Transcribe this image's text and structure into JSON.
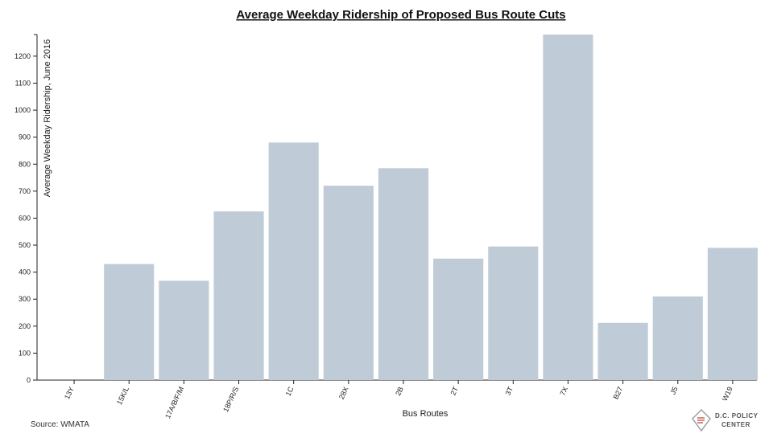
{
  "chart_data": {
    "type": "bar",
    "title": "Average Weekday Ridership of Proposed Bus Route Cuts",
    "xlabel": "Bus Routes",
    "ylabel": "Average Weekday Ridership, June 2016",
    "categories": [
      "13Y",
      "15K/L",
      "17A/B/F/M",
      "18P/R/S",
      "1C",
      "28X",
      "2B",
      "2T",
      "3T",
      "7X",
      "B27",
      "J5",
      "W19"
    ],
    "values": [
      0,
      430,
      368,
      625,
      880,
      720,
      785,
      450,
      495,
      1280,
      212,
      310,
      490
    ],
    "ylim": [
      0,
      1280
    ],
    "yticks": [
      0,
      100,
      200,
      300,
      400,
      500,
      600,
      700,
      800,
      900,
      1000,
      1100,
      1200
    ],
    "bar_color": "#bfccd8",
    "grid": false,
    "legend": "none"
  },
  "source": "Source: WMATA",
  "logo": {
    "line1": "D.C. POLICY",
    "line2": "CENTER",
    "icon": "dc-map-icon"
  }
}
